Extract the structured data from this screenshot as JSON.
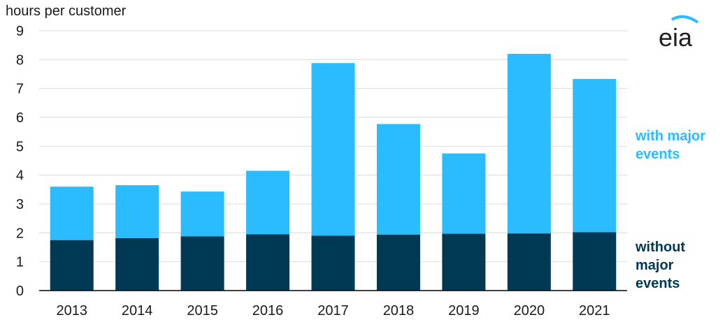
{
  "chart_data": {
    "type": "bar",
    "stacked": true,
    "ylabel": "hours per customer",
    "ylim": [
      0,
      9
    ],
    "yticks": [
      0,
      1,
      2,
      3,
      4,
      5,
      6,
      7,
      8,
      9
    ],
    "grid": true,
    "categories": [
      "2013",
      "2014",
      "2015",
      "2016",
      "2017",
      "2018",
      "2019",
      "2020",
      "2021"
    ],
    "series": [
      {
        "name": "without major events",
        "label_lines": [
          "without",
          "major",
          "events"
        ],
        "color": "#003953",
        "values": [
          1.75,
          1.82,
          1.88,
          1.95,
          1.9,
          1.94,
          1.97,
          1.98,
          2.02
        ]
      },
      {
        "name": "with major events",
        "label_lines": [
          "with major",
          "events"
        ],
        "color": "#2bbcff",
        "values": [
          1.85,
          1.83,
          1.55,
          2.2,
          5.98,
          3.83,
          2.78,
          6.22,
          5.31
        ]
      }
    ],
    "legend": "right, inline labels"
  },
  "logo": {
    "text": "eia"
  },
  "colors": {
    "grid": "#d9d9d9",
    "axis": "#000000",
    "logo_arc": "#2bbcff"
  }
}
